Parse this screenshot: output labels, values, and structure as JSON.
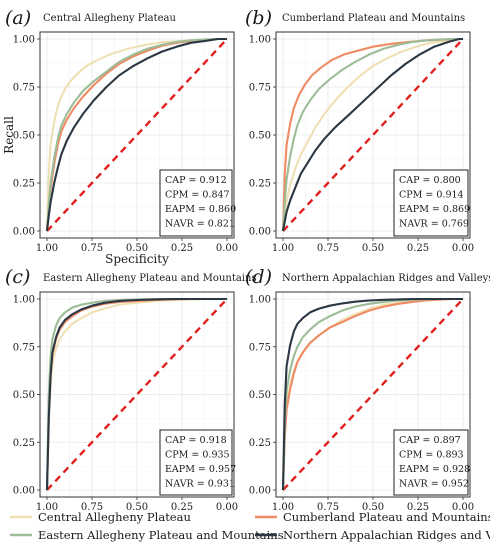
{
  "chart_data": [
    {
      "type": "line",
      "panel_label": "(a)",
      "title": "Central Allegheny Plateau",
      "xlabel": "Specificity",
      "ylabel": "Recall",
      "xlim": [
        1.0,
        0.0
      ],
      "ylim": [
        0.0,
        1.0
      ],
      "xticks": [
        "1.00",
        "0.75",
        "0.50",
        "0.25",
        "0.00"
      ],
      "yticks": [
        "0.00",
        "0.25",
        "0.50",
        "0.75",
        "1.00"
      ],
      "grid": true,
      "series": [
        {
          "name": "CAP",
          "auc_label": "CAP = 0.912",
          "color": "#efe0b4",
          "x": [
            1.0,
            0.99,
            0.98,
            0.96,
            0.94,
            0.92,
            0.9,
            0.87,
            0.83,
            0.78,
            0.72,
            0.65,
            0.55,
            0.45,
            0.35,
            0.25,
            0.15,
            0.05,
            0.0
          ],
          "y": [
            0.0,
            0.3,
            0.45,
            0.57,
            0.65,
            0.7,
            0.74,
            0.78,
            0.82,
            0.86,
            0.89,
            0.92,
            0.95,
            0.97,
            0.985,
            0.99,
            0.995,
            1.0,
            1.0
          ]
        },
        {
          "name": "CPM",
          "auc_label": "CPM = 0.847",
          "color": "#ef8a62",
          "x": [
            1.0,
            0.99,
            0.98,
            0.96,
            0.94,
            0.92,
            0.89,
            0.85,
            0.8,
            0.74,
            0.67,
            0.6,
            0.52,
            0.44,
            0.36,
            0.28,
            0.2,
            0.12,
            0.05,
            0.0
          ],
          "y": [
            0.0,
            0.12,
            0.22,
            0.35,
            0.45,
            0.52,
            0.58,
            0.64,
            0.7,
            0.76,
            0.82,
            0.87,
            0.91,
            0.94,
            0.965,
            0.98,
            0.99,
            0.995,
            1.0,
            1.0
          ]
        },
        {
          "name": "EAPM",
          "auc_label": "EAPM = 0.860",
          "color": "#9dbd98",
          "x": [
            1.0,
            0.99,
            0.98,
            0.96,
            0.94,
            0.92,
            0.89,
            0.85,
            0.8,
            0.74,
            0.67,
            0.6,
            0.52,
            0.44,
            0.36,
            0.28,
            0.2,
            0.12,
            0.05,
            0.0
          ],
          "y": [
            0.0,
            0.14,
            0.25,
            0.38,
            0.48,
            0.55,
            0.61,
            0.67,
            0.73,
            0.78,
            0.83,
            0.88,
            0.92,
            0.95,
            0.97,
            0.985,
            0.993,
            0.998,
            1.0,
            1.0
          ]
        },
        {
          "name": "NAVR",
          "auc_label": "NAVR = 0.821",
          "color": "#2b3844",
          "x": [
            1.0,
            0.99,
            0.98,
            0.96,
            0.94,
            0.92,
            0.89,
            0.85,
            0.8,
            0.74,
            0.67,
            0.6,
            0.52,
            0.44,
            0.36,
            0.28,
            0.2,
            0.12,
            0.05,
            0.0
          ],
          "y": [
            0.0,
            0.08,
            0.15,
            0.25,
            0.33,
            0.4,
            0.47,
            0.54,
            0.61,
            0.68,
            0.75,
            0.81,
            0.86,
            0.9,
            0.935,
            0.96,
            0.98,
            0.99,
            1.0,
            1.0
          ]
        }
      ]
    },
    {
      "type": "line",
      "panel_label": "(b)",
      "title": "Cumberland Plateau and Mountains",
      "xlabel": "",
      "ylabel": "",
      "xlim": [
        1.0,
        0.0
      ],
      "ylim": [
        0.0,
        1.0
      ],
      "xticks": [
        "1.00",
        "0.75",
        "0.50",
        "0.25",
        "0.00"
      ],
      "yticks": [
        "0.00",
        "0.25",
        "0.50",
        "0.75",
        "1.00"
      ],
      "grid": true,
      "series": [
        {
          "name": "CAP",
          "auc_label": "CAP = 0.800",
          "color": "#efe0b4",
          "x": [
            1.0,
            0.99,
            0.98,
            0.96,
            0.93,
            0.9,
            0.86,
            0.82,
            0.77,
            0.71,
            0.64,
            0.57,
            0.5,
            0.42,
            0.34,
            0.26,
            0.18,
            0.1,
            0.04,
            0.0
          ],
          "y": [
            0.0,
            0.08,
            0.15,
            0.24,
            0.33,
            0.4,
            0.47,
            0.54,
            0.61,
            0.68,
            0.75,
            0.81,
            0.86,
            0.9,
            0.935,
            0.96,
            0.98,
            0.99,
            1.0,
            1.0
          ]
        },
        {
          "name": "CPM",
          "auc_label": "CPM = 0.914",
          "color": "#ef8a62",
          "x": [
            1.0,
            0.99,
            0.98,
            0.96,
            0.94,
            0.91,
            0.88,
            0.84,
            0.79,
            0.73,
            0.66,
            0.58,
            0.5,
            0.4,
            0.3,
            0.2,
            0.1,
            0.03,
            0.0
          ],
          "y": [
            0.0,
            0.3,
            0.45,
            0.56,
            0.64,
            0.71,
            0.76,
            0.81,
            0.85,
            0.89,
            0.92,
            0.94,
            0.96,
            0.975,
            0.985,
            0.993,
            0.998,
            1.0,
            1.0
          ]
        },
        {
          "name": "EAPM",
          "auc_label": "EAPM = 0.869",
          "color": "#9dbd98",
          "x": [
            1.0,
            0.99,
            0.98,
            0.96,
            0.94,
            0.92,
            0.89,
            0.85,
            0.8,
            0.74,
            0.67,
            0.6,
            0.52,
            0.44,
            0.36,
            0.28,
            0.2,
            0.12,
            0.05,
            0.0
          ],
          "y": [
            0.0,
            0.15,
            0.27,
            0.39,
            0.48,
            0.55,
            0.62,
            0.68,
            0.74,
            0.79,
            0.84,
            0.88,
            0.92,
            0.95,
            0.97,
            0.985,
            0.993,
            0.998,
            1.0,
            1.0
          ]
        },
        {
          "name": "NAVR",
          "auc_label": "NAVR = 0.769",
          "color": "#2b3844",
          "x": [
            1.0,
            0.99,
            0.98,
            0.96,
            0.93,
            0.9,
            0.86,
            0.82,
            0.77,
            0.71,
            0.64,
            0.56,
            0.48,
            0.4,
            0.32,
            0.24,
            0.16,
            0.08,
            0.02,
            0.0
          ],
          "y": [
            0.0,
            0.05,
            0.1,
            0.16,
            0.23,
            0.3,
            0.36,
            0.42,
            0.48,
            0.54,
            0.6,
            0.67,
            0.74,
            0.81,
            0.87,
            0.92,
            0.96,
            0.985,
            1.0,
            1.0
          ]
        }
      ]
    },
    {
      "type": "line",
      "panel_label": "(c)",
      "title": "Eastern Allegheny Plateau and Mountains",
      "xlabel": "",
      "ylabel": "",
      "xlim": [
        1.0,
        0.0
      ],
      "ylim": [
        0.0,
        1.0
      ],
      "xticks": [
        "1.00",
        "0.75",
        "0.50",
        "0.25",
        "0.00"
      ],
      "yticks": [
        "0.00",
        "0.25",
        "0.50",
        "0.75",
        "1.00"
      ],
      "grid": true,
      "series": [
        {
          "name": "CAP",
          "auc_label": "CAP = 0.918",
          "color": "#efe0b4",
          "x": [
            1.0,
            0.99,
            0.98,
            0.97,
            0.95,
            0.93,
            0.9,
            0.86,
            0.81,
            0.75,
            0.68,
            0.6,
            0.5,
            0.4,
            0.3,
            0.2,
            0.1,
            0.0
          ],
          "y": [
            0.0,
            0.35,
            0.55,
            0.66,
            0.74,
            0.79,
            0.83,
            0.87,
            0.9,
            0.93,
            0.95,
            0.97,
            0.98,
            0.99,
            0.995,
            0.998,
            1.0,
            1.0
          ]
        },
        {
          "name": "CPM",
          "auc_label": "CPM = 0.935",
          "color": "#ef8a62",
          "x": [
            1.0,
            0.99,
            0.98,
            0.97,
            0.95,
            0.93,
            0.9,
            0.86,
            0.81,
            0.75,
            0.68,
            0.6,
            0.5,
            0.4,
            0.3,
            0.2,
            0.1,
            0.0
          ],
          "y": [
            0.0,
            0.4,
            0.6,
            0.71,
            0.79,
            0.84,
            0.88,
            0.91,
            0.94,
            0.96,
            0.975,
            0.985,
            0.99,
            0.995,
            0.998,
            1.0,
            1.0,
            1.0
          ]
        },
        {
          "name": "EAPM",
          "auc_label": "EAPM = 0.957",
          "color": "#9dbd98",
          "x": [
            1.0,
            0.99,
            0.98,
            0.97,
            0.95,
            0.93,
            0.9,
            0.86,
            0.81,
            0.75,
            0.68,
            0.6,
            0.5,
            0.4,
            0.3,
            0.2,
            0.1,
            0.0
          ],
          "y": [
            0.0,
            0.5,
            0.7,
            0.79,
            0.86,
            0.9,
            0.93,
            0.955,
            0.97,
            0.98,
            0.99,
            0.995,
            0.998,
            1.0,
            1.0,
            1.0,
            1.0,
            1.0
          ]
        },
        {
          "name": "NAVR",
          "auc_label": "NAVR = 0.931",
          "color": "#2b3844",
          "x": [
            1.0,
            0.99,
            0.98,
            0.97,
            0.95,
            0.93,
            0.9,
            0.86,
            0.81,
            0.75,
            0.68,
            0.6,
            0.5,
            0.4,
            0.3,
            0.2,
            0.1,
            0.0
          ],
          "y": [
            0.0,
            0.38,
            0.6,
            0.72,
            0.8,
            0.85,
            0.89,
            0.92,
            0.945,
            0.965,
            0.98,
            0.99,
            0.995,
            0.998,
            1.0,
            1.0,
            1.0,
            1.0
          ]
        }
      ]
    },
    {
      "type": "line",
      "panel_label": "(d)",
      "title": "Northern Appalachian Ridges and Valleys",
      "xlabel": "",
      "ylabel": "",
      "xlim": [
        1.0,
        0.0
      ],
      "ylim": [
        0.0,
        1.0
      ],
      "xticks": [
        "1.00",
        "0.75",
        "0.50",
        "0.25",
        "0.00"
      ],
      "yticks": [
        "0.00",
        "0.25",
        "0.50",
        "0.75",
        "1.00"
      ],
      "grid": true,
      "series": [
        {
          "name": "CAP",
          "auc_label": "CAP = 0.897",
          "color": "#efe0b4",
          "x": [
            1.0,
            0.99,
            0.98,
            0.96,
            0.94,
            0.92,
            0.89,
            0.85,
            0.8,
            0.74,
            0.67,
            0.6,
            0.52,
            0.44,
            0.36,
            0.28,
            0.2,
            0.12,
            0.05,
            0.0
          ],
          "y": [
            0.0,
            0.3,
            0.45,
            0.55,
            0.62,
            0.67,
            0.72,
            0.77,
            0.81,
            0.85,
            0.89,
            0.92,
            0.95,
            0.97,
            0.98,
            0.99,
            0.995,
            1.0,
            1.0,
            1.0
          ]
        },
        {
          "name": "CPM",
          "auc_label": "CPM = 0.893",
          "color": "#ef8a62",
          "x": [
            1.0,
            0.99,
            0.98,
            0.96,
            0.94,
            0.92,
            0.89,
            0.85,
            0.8,
            0.74,
            0.67,
            0.6,
            0.52,
            0.44,
            0.36,
            0.28,
            0.2,
            0.12,
            0.05,
            0.0
          ],
          "y": [
            0.0,
            0.28,
            0.42,
            0.53,
            0.61,
            0.67,
            0.72,
            0.77,
            0.81,
            0.85,
            0.88,
            0.91,
            0.94,
            0.96,
            0.975,
            0.985,
            0.993,
            0.998,
            1.0,
            1.0
          ]
        },
        {
          "name": "EAPM",
          "auc_label": "EAPM = 0.928",
          "color": "#9dbd98",
          "x": [
            1.0,
            0.99,
            0.98,
            0.96,
            0.94,
            0.92,
            0.89,
            0.85,
            0.8,
            0.74,
            0.67,
            0.6,
            0.52,
            0.44,
            0.36,
            0.28,
            0.2,
            0.12,
            0.05,
            0.0
          ],
          "y": [
            0.0,
            0.35,
            0.52,
            0.63,
            0.7,
            0.75,
            0.8,
            0.84,
            0.88,
            0.91,
            0.94,
            0.96,
            0.975,
            0.985,
            0.992,
            0.996,
            0.999,
            1.0,
            1.0,
            1.0
          ]
        },
        {
          "name": "NAVR",
          "auc_label": "NAVR = 0.952",
          "color": "#2b3844",
          "x": [
            1.0,
            0.99,
            0.98,
            0.96,
            0.94,
            0.92,
            0.89,
            0.85,
            0.8,
            0.74,
            0.67,
            0.6,
            0.52,
            0.44,
            0.36,
            0.28,
            0.2,
            0.12,
            0.05,
            0.0
          ],
          "y": [
            0.0,
            0.45,
            0.65,
            0.76,
            0.83,
            0.87,
            0.9,
            0.93,
            0.95,
            0.965,
            0.977,
            0.986,
            0.992,
            0.996,
            0.998,
            1.0,
            1.0,
            1.0,
            1.0,
            1.0
          ]
        }
      ]
    }
  ],
  "reference_line": {
    "color": "#e0201e"
  },
  "legend": {
    "placement": "bottom",
    "items": [
      {
        "label": "Central Allegheny Plateau",
        "color": "#efe0b4"
      },
      {
        "label": "Cumberland Plateau and Mountains",
        "color": "#ef8a62"
      },
      {
        "label": "Eastern Allegheny Plateau and Mountains",
        "color": "#9dbd98"
      },
      {
        "label": "Northern Appalachian Ridges and Valleys",
        "color": "#2b3844"
      }
    ]
  }
}
